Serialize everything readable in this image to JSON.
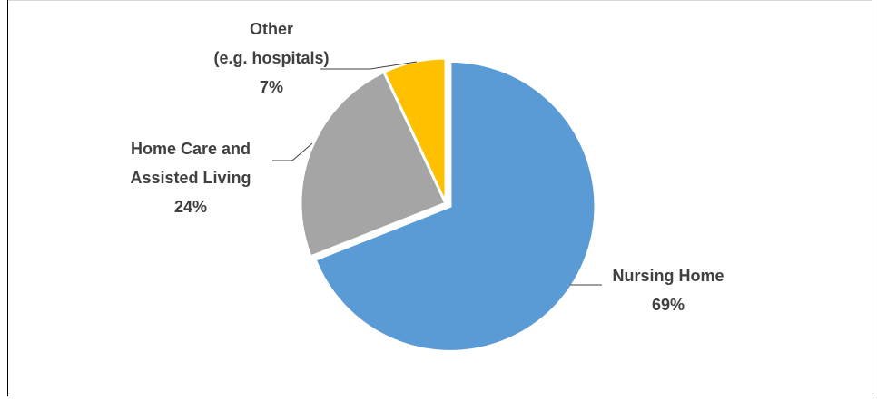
{
  "chart_data": {
    "type": "pie",
    "start_angle_deg": 0,
    "direction": "clockwise",
    "slices": [
      {
        "label_lines": [
          "Nursing Home"
        ],
        "percent_label": "69%",
        "value": 69,
        "color": "#5B9BD5",
        "exploded": true
      },
      {
        "label_lines": [
          "Home Care and",
          "Assisted Living"
        ],
        "percent_label": "24%",
        "value": 24,
        "color": "#A5A5A5",
        "exploded": false
      },
      {
        "label_lines": [
          "Other",
          "(e.g. hospitals)"
        ],
        "percent_label": "7%",
        "value": 7,
        "color": "#FFC000",
        "exploded": false
      }
    ],
    "title": "",
    "legend": "none",
    "data_labels": "outside-with-leader-lines"
  }
}
